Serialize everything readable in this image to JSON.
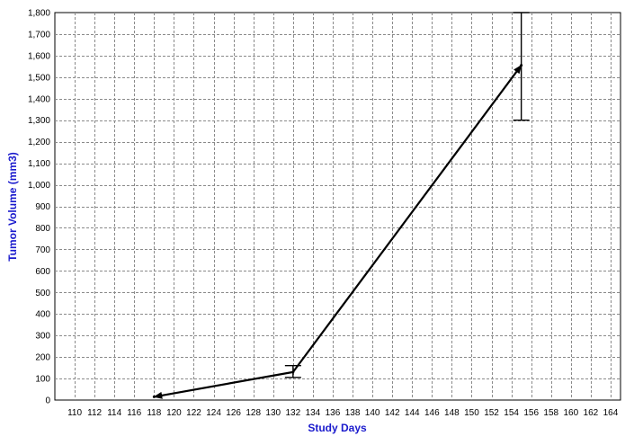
{
  "chart_data": {
    "type": "line",
    "title": "",
    "xlabel": "Study Days",
    "ylabel": "Tumor Volume (mm3)",
    "xlim": [
      108,
      165
    ],
    "ylim": [
      0,
      1800
    ],
    "grid": true,
    "x_ticks": [
      110,
      112,
      114,
      116,
      118,
      120,
      122,
      124,
      126,
      128,
      130,
      132,
      134,
      136,
      138,
      140,
      142,
      144,
      146,
      148,
      150,
      152,
      154,
      156,
      158,
      160,
      162,
      164
    ],
    "y_ticks": [
      0,
      100,
      200,
      300,
      400,
      500,
      600,
      700,
      800,
      900,
      1000,
      1100,
      1200,
      1300,
      1400,
      1500,
      1600,
      1700,
      1800
    ],
    "y_tick_labels": [
      "0",
      "100",
      "200",
      "300",
      "400",
      "500",
      "600",
      "700",
      "800",
      "900",
      "1,000",
      "1,100",
      "1,200",
      "1,300",
      "1,400",
      "1,500",
      "1,600",
      "1,700",
      "1,800"
    ],
    "series": [
      {
        "x": [
          118,
          132,
          155
        ],
        "y": [
          15,
          130,
          1555
        ],
        "error_low": [
          null,
          105,
          1300
        ],
        "error_high": [
          null,
          160,
          1800
        ],
        "color": "#000000",
        "marker": "arrow"
      }
    ]
  }
}
